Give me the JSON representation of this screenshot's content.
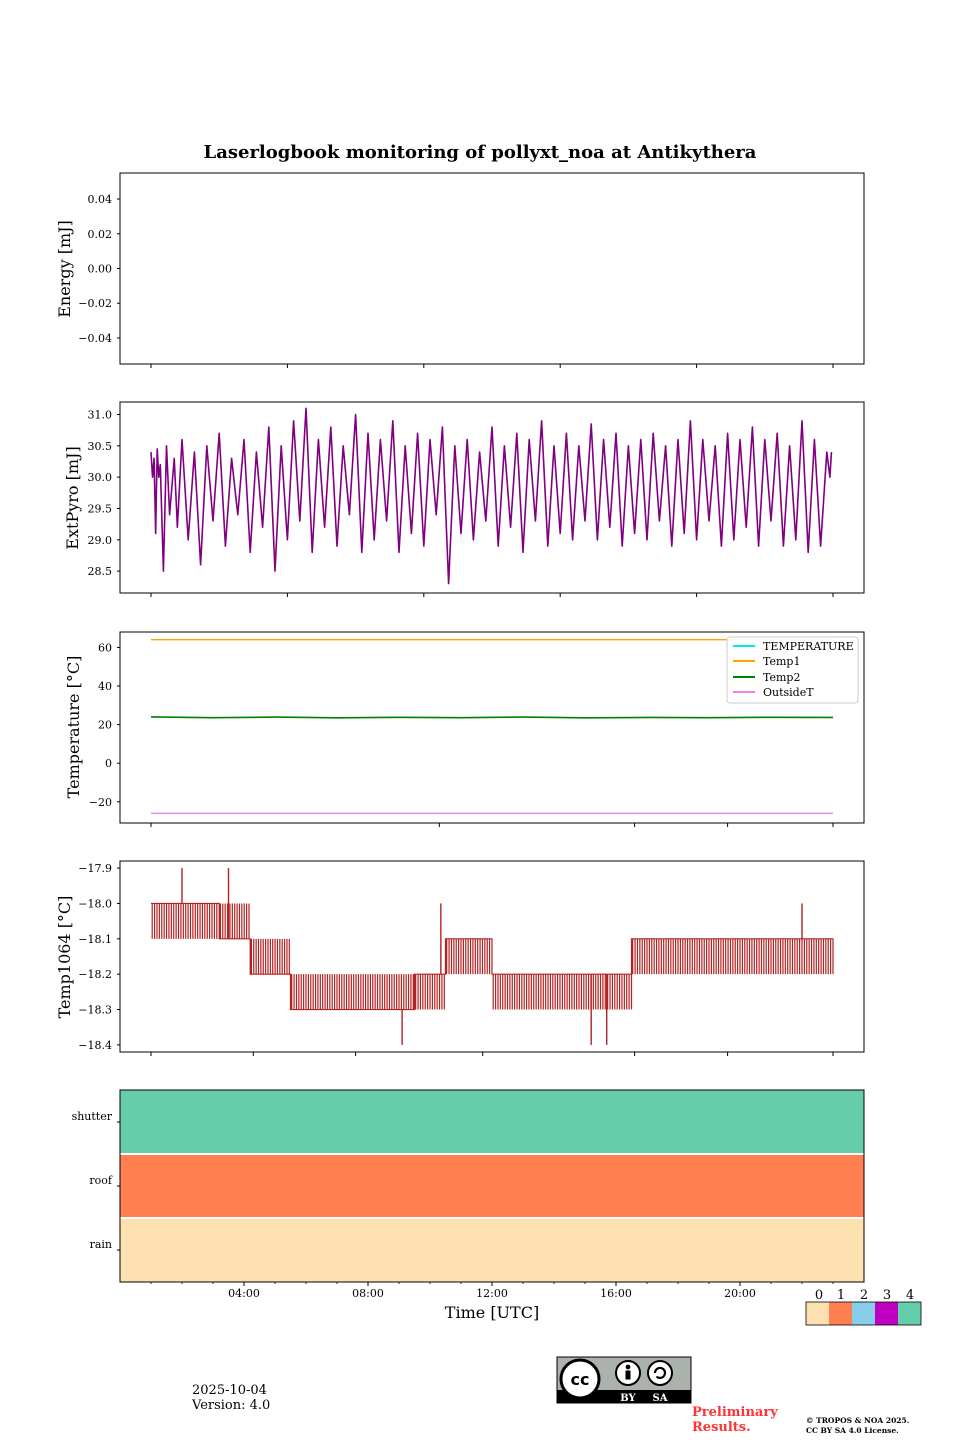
{
  "title": "Laserlogbook monitoring of pollyxt_noa at Antikythera",
  "xlabel": "Time [UTC]",
  "x_ticks": [
    "04:00",
    "08:00",
    "12:00",
    "16:00",
    "20:00"
  ],
  "footer": {
    "date": "2025-10-04",
    "version": "Version: 4.0",
    "preliminary": "Preliminary\nResults.",
    "copyright_line1": "© TROPOS & NOA 2025.",
    "copyright_line2": "CC BY SA 4.0 License.",
    "cc_badge_labels": [
      "BY",
      "SA"
    ]
  },
  "colors": {
    "extpyro": "#800080",
    "temp1064": "#b22222",
    "TEMPERATURE": "#00e5ee",
    "Temp1": "#ffa500",
    "Temp2": "#008000",
    "OutsideT": "#ee82ee",
    "status": [
      "#fde0b0",
      "#ff7f50",
      "#87ceeb",
      "#c000c0",
      "#66cdaa"
    ],
    "preliminary": "#ff3333"
  },
  "chart_data": [
    {
      "type": "line",
      "panel": "energy",
      "ylabel": "Energy [mJ]",
      "ylim": [
        -0.055,
        0.055
      ],
      "yticks": [
        -0.04,
        -0.02,
        0.0,
        0.02,
        0.04
      ],
      "ytick_labels": [
        "−0.04",
        "−0.02",
        "0.00",
        "0.02",
        "0.04"
      ],
      "series": []
    },
    {
      "type": "line",
      "panel": "extpyro",
      "ylabel": "ExtPyro [mJ]",
      "xlim_hours": [
        0,
        24
      ],
      "ylim": [
        28.15,
        31.2
      ],
      "yticks": [
        28.5,
        29.0,
        29.5,
        30.0,
        30.5,
        31.0
      ],
      "ytick_labels": [
        "28.5",
        "29.0",
        "29.5",
        "30.0",
        "30.5",
        "31.0"
      ],
      "series": [
        {
          "name": "ExtPyro",
          "x_hours": [
            1.0,
            1.05,
            1.1,
            1.15,
            1.2,
            1.25,
            1.3,
            1.4,
            1.5,
            1.6,
            1.75,
            1.85,
            2.0,
            2.2,
            2.4,
            2.6,
            2.8,
            3.0,
            3.2,
            3.4,
            3.6,
            3.8,
            4.0,
            4.2,
            4.4,
            4.6,
            4.8,
            5.0,
            5.2,
            5.4,
            5.6,
            5.8,
            6.0,
            6.2,
            6.4,
            6.6,
            6.8,
            7.0,
            7.2,
            7.4,
            7.6,
            7.8,
            8.0,
            8.2,
            8.4,
            8.6,
            8.8,
            9.0,
            9.2,
            9.4,
            9.6,
            9.8,
            10.0,
            10.2,
            10.4,
            10.6,
            10.8,
            11.0,
            11.2,
            11.4,
            11.6,
            11.8,
            12.0,
            12.2,
            12.4,
            12.6,
            12.8,
            13.0,
            13.2,
            13.4,
            13.6,
            13.8,
            14.0,
            14.2,
            14.4,
            14.6,
            14.8,
            15.0,
            15.2,
            15.4,
            15.6,
            15.8,
            16.0,
            16.2,
            16.4,
            16.6,
            16.8,
            17.0,
            17.2,
            17.4,
            17.6,
            17.8,
            18.0,
            18.2,
            18.4,
            18.6,
            18.8,
            19.0,
            19.2,
            19.4,
            19.6,
            19.8,
            20.0,
            20.2,
            20.4,
            20.6,
            20.8,
            21.0,
            21.2,
            21.4,
            21.6,
            21.8,
            22.0,
            22.2,
            22.4,
            22.6,
            22.8,
            22.9,
            22.95
          ],
          "values": [
            30.4,
            30.0,
            30.3,
            29.1,
            30.45,
            30.0,
            30.2,
            28.5,
            30.5,
            29.4,
            30.3,
            29.2,
            30.6,
            29.0,
            30.4,
            28.6,
            30.5,
            29.3,
            30.7,
            28.9,
            30.3,
            29.4,
            30.6,
            28.8,
            30.4,
            29.2,
            30.8,
            28.5,
            30.5,
            29.0,
            30.9,
            29.3,
            31.1,
            28.8,
            30.6,
            29.2,
            30.8,
            28.9,
            30.5,
            29.4,
            31.0,
            28.8,
            30.7,
            29.0,
            30.6,
            29.3,
            30.9,
            28.8,
            30.5,
            29.1,
            30.7,
            28.9,
            30.6,
            29.4,
            30.8,
            28.3,
            30.5,
            29.1,
            30.6,
            29.0,
            30.4,
            29.3,
            30.8,
            28.9,
            30.5,
            29.2,
            30.7,
            28.8,
            30.6,
            29.3,
            30.9,
            28.9,
            30.5,
            29.1,
            30.7,
            29.0,
            30.5,
            29.3,
            30.85,
            29.0,
            30.6,
            29.2,
            30.7,
            28.9,
            30.5,
            29.1,
            30.6,
            29.0,
            30.7,
            29.3,
            30.5,
            28.9,
            30.6,
            29.1,
            30.9,
            29.0,
            30.6,
            29.3,
            30.5,
            28.9,
            30.7,
            29.0,
            30.6,
            29.2,
            30.8,
            28.9,
            30.6,
            29.3,
            30.7,
            28.9,
            30.5,
            29.0,
            30.9,
            28.8,
            30.6,
            28.9,
            30.4,
            30.0,
            30.4
          ]
        }
      ]
    },
    {
      "type": "line",
      "panel": "temperature",
      "ylabel": "Temperature [°C]",
      "ylim": [
        -31,
        68
      ],
      "yticks": [
        -20,
        0,
        20,
        40,
        60
      ],
      "ytick_labels": [
        "−20",
        "0",
        "20",
        "40",
        "60"
      ],
      "legend_position": "top-right",
      "series": [
        {
          "name": "TEMPERATURE",
          "x_hours": [],
          "values": []
        },
        {
          "name": "Temp1",
          "x_hours": [
            1,
            23
          ],
          "values": [
            64,
            64
          ]
        },
        {
          "name": "Temp2",
          "x_hours": [
            1,
            3,
            5,
            7,
            9,
            11,
            13,
            15,
            17,
            19,
            21,
            23
          ],
          "values": [
            24.0,
            23.6,
            23.9,
            23.5,
            23.8,
            23.6,
            23.9,
            23.5,
            23.7,
            23.6,
            23.8,
            23.7
          ]
        },
        {
          "name": "OutsideT",
          "x_hours": [
            1,
            23
          ],
          "values": [
            -26,
            -26
          ]
        }
      ]
    },
    {
      "type": "line",
      "panel": "temp1064",
      "ylabel": "Temp1064 [°C]",
      "ylim": [
        -18.42,
        -17.88
      ],
      "yticks": [
        -18.4,
        -18.3,
        -18.2,
        -18.1,
        -18.0,
        -17.9
      ],
      "ytick_labels": [
        "−18.4",
        "−18.3",
        "−18.2",
        "−18.1",
        "−18.0",
        "−17.9"
      ],
      "segments": [
        {
          "x_hours": [
            1.0,
            3.2
          ],
          "base": -18.0,
          "alt": -18.1
        },
        {
          "x_hours": [
            3.2,
            4.2
          ],
          "base": -18.1,
          "alt": -18.0
        },
        {
          "x_hours": [
            4.2,
            5.5
          ],
          "base": -18.2,
          "alt": -18.1
        },
        {
          "x_hours": [
            5.5,
            9.5
          ],
          "base": -18.3,
          "alt": -18.2
        },
        {
          "x_hours": [
            9.5,
            10.5
          ],
          "base": -18.2,
          "alt": -18.3
        },
        {
          "x_hours": [
            10.5,
            12.0
          ],
          "base": -18.1,
          "alt": -18.2
        },
        {
          "x_hours": [
            12.0,
            16.5
          ],
          "base": -18.2,
          "alt": -18.3
        },
        {
          "x_hours": [
            16.5,
            23.0
          ],
          "base": -18.1,
          "alt": -18.2
        }
      ],
      "spikes": [
        {
          "x_hour": 2.0,
          "value": -17.9
        },
        {
          "x_hour": 3.5,
          "value": -17.9
        },
        {
          "x_hour": 10.35,
          "value": -18.0
        },
        {
          "x_hour": 9.1,
          "value": -18.4
        },
        {
          "x_hour": 15.2,
          "value": -18.4
        },
        {
          "x_hour": 15.7,
          "value": -18.4
        },
        {
          "x_hour": 22.0,
          "value": -18.0
        }
      ]
    },
    {
      "type": "heatmap",
      "panel": "status",
      "rows": [
        "shutter",
        "roof",
        "rain"
      ],
      "row_values": [
        4,
        1,
        0
      ],
      "colorbar_ticks": [
        "0",
        "1",
        "2",
        "3",
        "4"
      ]
    }
  ]
}
